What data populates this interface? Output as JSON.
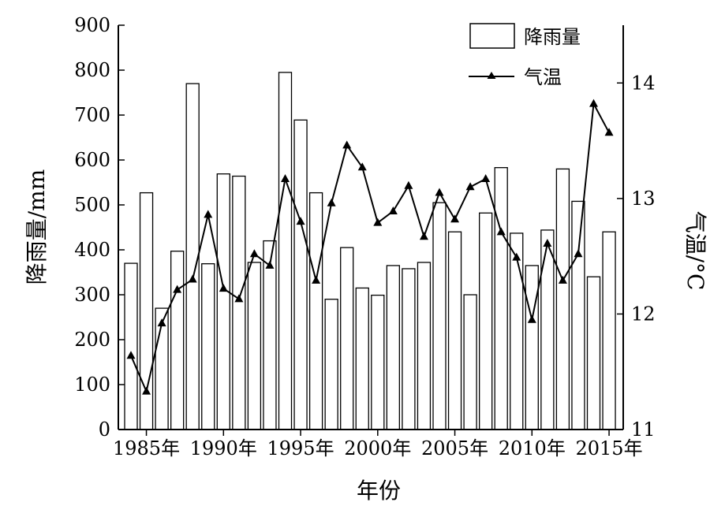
{
  "chart_data": {
    "type": "bar+line",
    "title": "",
    "x": [
      1984,
      1985,
      1986,
      1987,
      1988,
      1989,
      1990,
      1991,
      1992,
      1993,
      1994,
      1995,
      1996,
      1997,
      1998,
      1999,
      2000,
      2001,
      2002,
      2003,
      2004,
      2005,
      2006,
      2007,
      2008,
      2009,
      2010,
      2011,
      2012,
      2013,
      2014,
      2015
    ],
    "xticks": [
      1985,
      1990,
      1995,
      2000,
      2005,
      2010,
      2015
    ],
    "xtick_labels": [
      "1985年",
      "1990年",
      "1995年",
      "2000年",
      "2005年",
      "2010年",
      "2015年"
    ],
    "xlabel": "年份",
    "ylabel_left": "降雨量/mm",
    "ylabel_right": "气温/°C",
    "ylim_left": [
      0,
      900
    ],
    "yticks_left": [
      0,
      100,
      200,
      300,
      400,
      500,
      600,
      700,
      800,
      900
    ],
    "ylim_right": [
      11,
      14.5
    ],
    "yticks_right": [
      11,
      12,
      13,
      14
    ],
    "legend_position": "top-right",
    "series": [
      {
        "name": "降雨量",
        "type": "bar",
        "axis": "left",
        "color": "#ffffff",
        "values": [
          370,
          527,
          270,
          397,
          770,
          369,
          569,
          564,
          372,
          420,
          795,
          689,
          527,
          290,
          405,
          315,
          299,
          365,
          358,
          372,
          505,
          440,
          300,
          482,
          583,
          437,
          365,
          444,
          580,
          508,
          340,
          440
        ]
      },
      {
        "name": "气温",
        "type": "line",
        "axis": "right",
        "marker": "triangle",
        "color": "#000000",
        "values": [
          11.64,
          11.33,
          11.92,
          12.21,
          12.3,
          12.86,
          12.22,
          12.13,
          12.52,
          12.42,
          13.17,
          12.8,
          12.29,
          12.96,
          13.46,
          13.27,
          12.79,
          12.89,
          13.11,
          12.67,
          13.05,
          12.82,
          13.1,
          13.17,
          12.71,
          12.49,
          11.95,
          12.61,
          12.29,
          12.52,
          13.82,
          13.57
        ]
      }
    ]
  }
}
